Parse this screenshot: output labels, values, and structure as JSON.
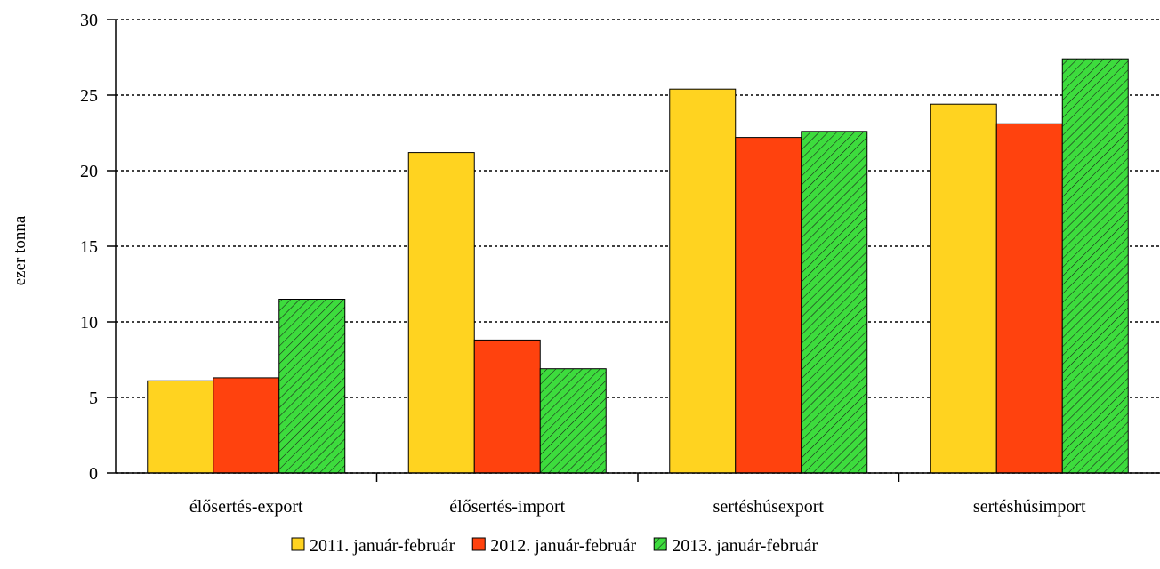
{
  "chart_data": {
    "type": "bar",
    "title": "",
    "xlabel": "",
    "ylabel": "ezer tonna",
    "ylim": [
      0,
      30
    ],
    "yticks": [
      0,
      5,
      10,
      15,
      20,
      25,
      30
    ],
    "grid": true,
    "legend_position": "bottom",
    "categories": [
      "élősertés-export",
      "élősertés-import",
      "sertéshúsexport",
      "sertéshúsimport"
    ],
    "series": [
      {
        "name": "2011. január-február",
        "values": [
          6.1,
          21.2,
          25.4,
          24.4
        ],
        "color": "#FFD320",
        "pattern": "solid"
      },
      {
        "name": "2012. január-február",
        "values": [
          6.3,
          8.8,
          22.2,
          23.1
        ],
        "color": "#FF420E",
        "pattern": "solid"
      },
      {
        "name": "2013. január-február",
        "values": [
          11.5,
          6.9,
          22.6,
          27.4
        ],
        "color": "#3DDC3D",
        "pattern": "hatched"
      }
    ]
  }
}
